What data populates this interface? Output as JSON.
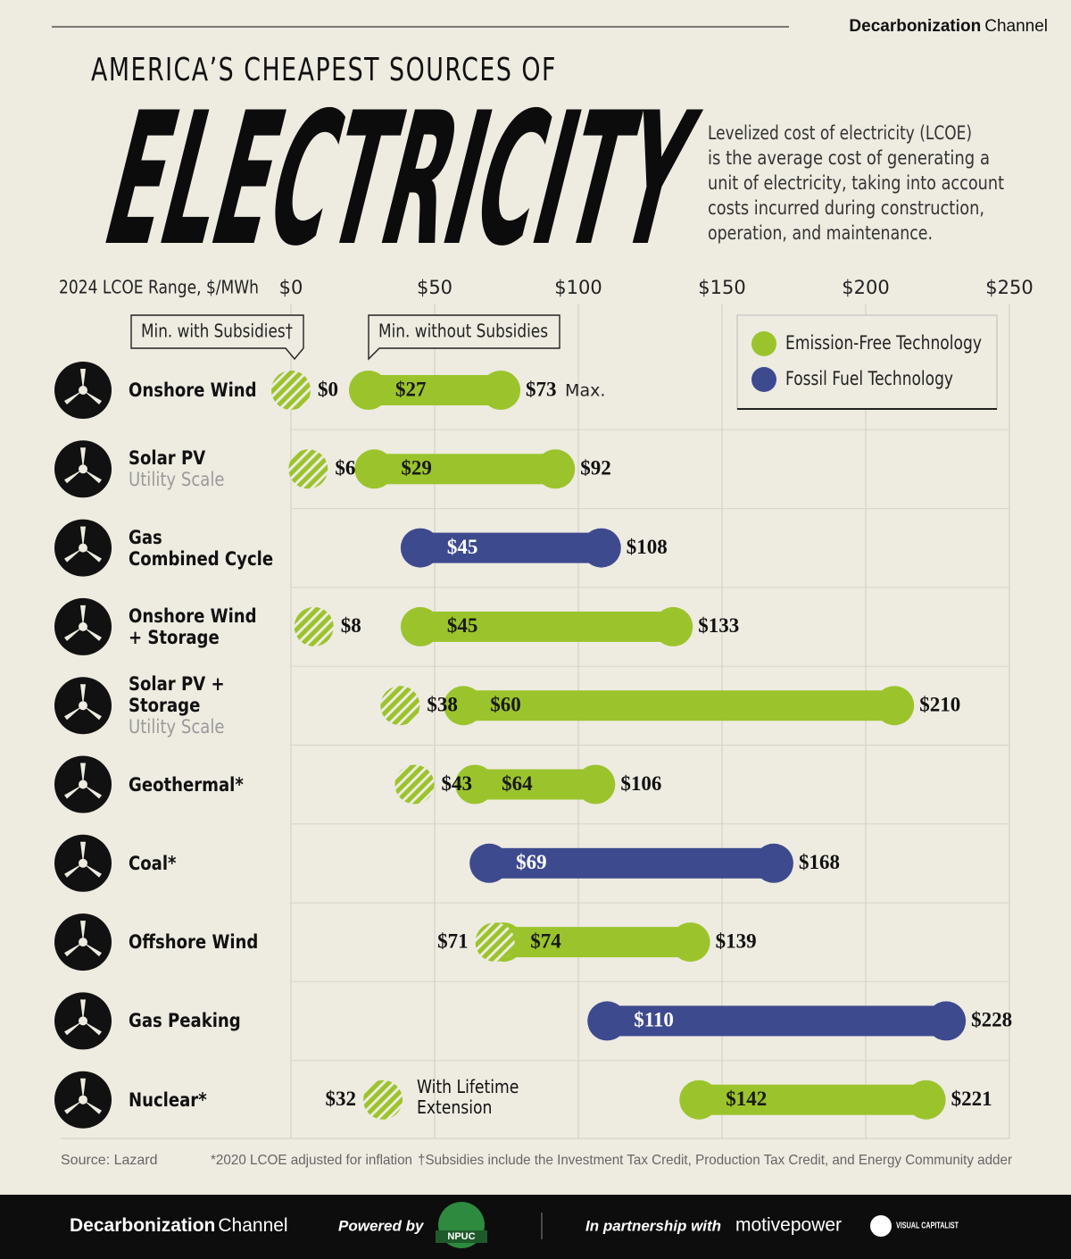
{
  "header": {
    "brand_bold": "Decarbonization",
    "brand_light": "Channel",
    "title_top": "AMERICA’S CHEAPEST SOURCES OF",
    "title_main": "ELECTRICITY",
    "description": [
      "Levelized cost of electricity (LCOE)",
      "is the average cost of generating a",
      "unit of electricity, taking into account",
      "costs incurred during construction,",
      "operation, and maintenance."
    ]
  },
  "chart_data": {
    "type": "dumbbell",
    "axis_label": "2024 LCOE Range, $/MWh",
    "xlim": [
      0,
      250
    ],
    "xticks": [
      {
        "value": 0,
        "label": "$0"
      },
      {
        "value": 50,
        "label": "$50"
      },
      {
        "value": 100,
        "label": "$100"
      },
      {
        "value": 150,
        "label": "$150"
      },
      {
        "value": 200,
        "label": "$200"
      },
      {
        "value": 250,
        "label": "$250"
      }
    ],
    "grid": true,
    "legend": [
      {
        "name": "Emission-Free Technology",
        "color": "#9bc42c"
      },
      {
        "name": "Fossil Fuel Technology",
        "color": "#3e4a8e"
      }
    ],
    "categories": [
      "Onshore Wind",
      "Solar PV",
      "Gas\nCombined Cycle",
      "Onshore Wind\n+ Storage",
      "Solar PV + Storage",
      "Geothermal*",
      "Coal*",
      "Offshore Wind",
      "Gas Peaking",
      "Nuclear*"
    ],
    "category_notes": [
      null,
      "Utility Scale",
      null,
      null,
      "Utility Scale",
      null,
      null,
      null,
      null,
      null
    ],
    "technology": [
      0,
      0,
      1,
      0,
      0,
      0,
      1,
      0,
      1,
      0
    ],
    "series": [
      {
        "name": "Min. with Subsidies†",
        "values": [
          0,
          6,
          null,
          8,
          38,
          43,
          null,
          71,
          null,
          32
        ],
        "value_labels": [
          "$0",
          "$6",
          null,
          "$8",
          "$38",
          "$43",
          null,
          "$71",
          null,
          "$32"
        ]
      },
      {
        "name": "Min. without Subsidies",
        "values": [
          27,
          29,
          45,
          45,
          60,
          64,
          69,
          74,
          110,
          142
        ],
        "value_labels": [
          "$27",
          "$29",
          "$45",
          "$45",
          "$60",
          "$64",
          "$69",
          "$74",
          "$110",
          "$142"
        ]
      },
      {
        "name": "Max.",
        "values": [
          73,
          92,
          108,
          133,
          210,
          106,
          168,
          139,
          228,
          221
        ],
        "value_labels": [
          "$73",
          "$92",
          "$108",
          "$133",
          "$210",
          "$106",
          "$168",
          "$139",
          "$228",
          "$221"
        ]
      }
    ],
    "annotation": "With Lifetime Extension"
  },
  "footer": {
    "source": "Source: Lazard",
    "note_1": "*2020 LCOE adjusted for inflation",
    "note_2": "†Subsidies include the Investment Tax Credit, Production Tax Credit, and Energy Community adder",
    "powered_by": "Powered by",
    "npuc": "NPUC",
    "partnership": "In partnership with",
    "partner_1": "motivepower",
    "partner_2": "VISUAL CAPITALIST"
  }
}
